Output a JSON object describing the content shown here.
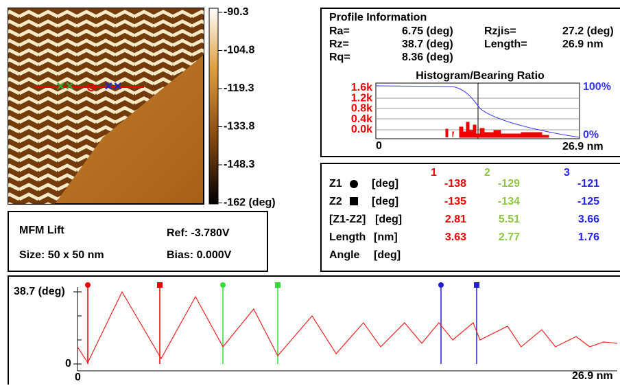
{
  "image": {
    "scale_labels": [
      "-90.3",
      "-104.8",
      "-119.3",
      "-133.8",
      "-148.3",
      "-162 (deg)"
    ]
  },
  "info": {
    "title": "Profile Information",
    "rows": [
      [
        "Ra=",
        "6.75 (deg)",
        "Rzjis=",
        "27.2 (deg)"
      ],
      [
        "Rz=",
        "38.7 (deg)",
        "Length=",
        "26.9 nm"
      ],
      [
        "Rq=",
        "8.36 (deg)"
      ]
    ],
    "histogram_title": "Histogram/Bearing Ratio",
    "histogram_yticks": [
      "1.6k",
      "1.2k",
      "0.8k",
      "0.4k",
      "0.0k"
    ],
    "histogram_x_start": "0",
    "histogram_x_end": "26.9 nm",
    "bearing_ticks": [
      "100%",
      "0%"
    ]
  },
  "table": {
    "columns": [
      "1",
      "2",
      "3"
    ],
    "rows": [
      [
        "Z1",
        "[deg]",
        "-138",
        "-129",
        "-121"
      ],
      [
        "Z2",
        "[deg]",
        "-135",
        "-134",
        "-125"
      ],
      [
        "[Z1-Z2]",
        "[deg]",
        "2.81",
        "5.51",
        "3.66"
      ],
      [
        "Length",
        "[nm]",
        "3.63",
        "2.77",
        "1.76"
      ],
      [
        "Angle",
        "[deg]"
      ]
    ]
  },
  "scan": {
    "mode": "MFM Lift",
    "size": "Size: 50 x 50 nm",
    "ref": "Ref: -3.780V",
    "bias": "Bias: 0.000V"
  },
  "profile": {
    "y_label": "38.7 (deg)",
    "y_zero": "0",
    "x_start": "0",
    "x_end": "26.9 nm",
    "xlim": [
      0,
      26.9
    ],
    "ylim": [
      0,
      38.7
    ],
    "x": [
      0,
      0.51,
      2.22,
      4.17,
      5.88,
      7.25,
      8.78,
      9.98,
      11.69,
      12.89,
      14.25,
      15.11,
      16.3,
      17.16,
      18.01,
      18.7,
      19.72,
      20.06,
      21.43,
      22.11,
      23.14,
      23.82,
      24.85,
      25.53,
      26.22,
      26.9
    ],
    "values": [
      9.2,
      0.7,
      38.7,
      2.9,
      36.1,
      9.2,
      29.5,
      4.4,
      25.8,
      5.5,
      22.1,
      9.2,
      22.1,
      11.1,
      22.1,
      12.9,
      22.1,
      12.9,
      20.3,
      9.2,
      18.4,
      9.2,
      14.7,
      9.2,
      11.8,
      11.1
    ]
  }
}
